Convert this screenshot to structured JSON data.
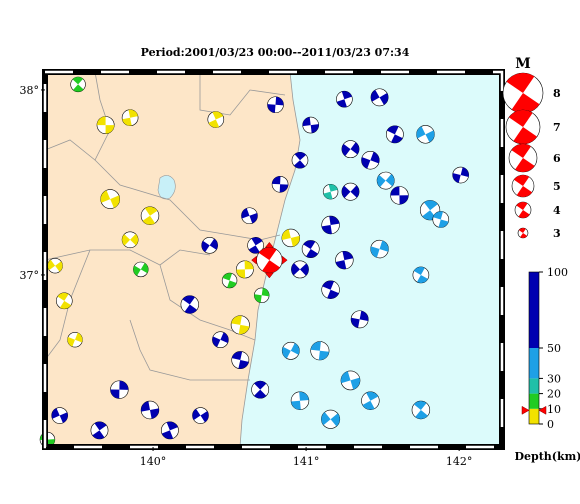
{
  "map": {
    "title": "Period:2001/03/23 00:00--2011/03/23 07:34",
    "xlim": [
      139.294,
      142.28
    ],
    "ylim": [
      36.07,
      38.097
    ],
    "xticks": [
      {
        "value": 140,
        "label": "140°"
      },
      {
        "value": 141,
        "label": "141°"
      },
      {
        "value": 142,
        "label": "142°"
      }
    ],
    "yticks": [
      {
        "value": 38,
        "label": "38°"
      },
      {
        "value": 37,
        "label": "37°"
      }
    ],
    "main_event": [
      140.76,
      37.08,
      5.6,
      9
    ],
    "main_color": "#ff0000",
    "events": [
      [
        139.69,
        37.81,
        4.2,
        5
      ],
      [
        139.85,
        37.85,
        4.0,
        5
      ],
      [
        139.72,
        37.41,
        4.5,
        5
      ],
      [
        139.98,
        37.32,
        4.3,
        5
      ],
      [
        139.85,
        37.19,
        4.0,
        5
      ],
      [
        139.42,
        36.86,
        4.0,
        5
      ],
      [
        139.49,
        36.65,
        3.8,
        5
      ],
      [
        140.57,
        36.73,
        4.4,
        5
      ],
      [
        140.6,
        37.03,
        4.2,
        5
      ],
      [
        140.9,
        37.2,
        4.3,
        5
      ],
      [
        140.41,
        37.84,
        4.0,
        5
      ],
      [
        139.36,
        37.05,
        3.8,
        5
      ],
      [
        139.51,
        38.03,
        3.8,
        15
      ],
      [
        139.92,
        37.03,
        3.8,
        15
      ],
      [
        140.5,
        36.97,
        3.8,
        15
      ],
      [
        140.71,
        36.89,
        3.8,
        15
      ],
      [
        139.31,
        36.11,
        3.8,
        15
      ],
      [
        141.16,
        37.45,
        3.8,
        25
      ],
      [
        141.78,
        37.76,
        4.3,
        40
      ],
      [
        141.81,
        37.35,
        4.6,
        40
      ],
      [
        141.52,
        37.51,
        4.2,
        40
      ],
      [
        141.75,
        37.0,
        4.0,
        40
      ],
      [
        141.48,
        37.14,
        4.3,
        40
      ],
      [
        141.09,
        36.59,
        4.4,
        40
      ],
      [
        140.96,
        36.32,
        4.3,
        40
      ],
      [
        141.29,
        36.43,
        4.5,
        40
      ],
      [
        141.42,
        36.32,
        4.3,
        40
      ],
      [
        141.16,
        36.22,
        4.4,
        40
      ],
      [
        141.75,
        36.27,
        4.3,
        40
      ],
      [
        140.9,
        36.59,
        4.2,
        40
      ],
      [
        141.88,
        37.3,
        4.0,
        40
      ],
      [
        140.8,
        37.92,
        4.0,
        70
      ],
      [
        141.03,
        37.81,
        4.0,
        70
      ],
      [
        141.25,
        37.95,
        4.0,
        70
      ],
      [
        141.48,
        37.96,
        4.2,
        70
      ],
      [
        140.96,
        37.62,
        4.0,
        70
      ],
      [
        141.29,
        37.68,
        4.2,
        70
      ],
      [
        141.58,
        37.76,
        4.2,
        70
      ],
      [
        142.01,
        37.54,
        4.0,
        70
      ],
      [
        140.83,
        37.49,
        4.0,
        70
      ],
      [
        141.16,
        37.27,
        4.3,
        70
      ],
      [
        140.63,
        37.32,
        4.0,
        70
      ],
      [
        140.67,
        37.16,
        4.0,
        70
      ],
      [
        140.96,
        37.03,
        4.2,
        70
      ],
      [
        140.24,
        36.84,
        4.3,
        70
      ],
      [
        140.44,
        36.65,
        4.0,
        70
      ],
      [
        140.57,
        36.54,
        4.2,
        70
      ],
      [
        139.78,
        36.38,
        4.3,
        70
      ],
      [
        139.98,
        36.27,
        4.3,
        70
      ],
      [
        140.11,
        36.16,
        4.2,
        70
      ],
      [
        140.31,
        36.24,
        4.0,
        70
      ],
      [
        140.7,
        36.38,
        4.2,
        70
      ],
      [
        140.37,
        37.16,
        4.0,
        70
      ],
      [
        141.16,
        36.92,
        4.3,
        70
      ],
      [
        141.35,
        36.76,
        4.2,
        70
      ],
      [
        141.61,
        37.43,
        4.3,
        70
      ],
      [
        141.25,
        37.08,
        4.3,
        70
      ],
      [
        139.39,
        36.24,
        4.0,
        70
      ],
      [
        139.65,
        36.16,
        4.2,
        70
      ],
      [
        141.29,
        37.45,
        4.2,
        70
      ],
      [
        141.03,
        37.14,
        4.2,
        70
      ],
      [
        141.42,
        37.62,
        4.3,
        70
      ]
    ],
    "magnitude_legend": {
      "title": "M",
      "entries": [
        8,
        7,
        6,
        5,
        4,
        3
      ],
      "color": "#ff0000"
    },
    "depth_scale": {
      "label": "Depth(km)",
      "lim": [
        0,
        100
      ],
      "ticks": [
        0,
        10,
        20,
        30,
        50,
        100
      ],
      "segments": [
        {
          "from": 0,
          "to": 10,
          "color": "#f2e200"
        },
        {
          "from": 10,
          "to": 20,
          "color": "#22cc22"
        },
        {
          "from": 20,
          "to": 30,
          "color": "#20c0a8"
        },
        {
          "from": 30,
          "to": 50,
          "color": "#1ea0e6"
        },
        {
          "from": 50,
          "to": 100,
          "color": "#0000b0"
        }
      ]
    }
  }
}
